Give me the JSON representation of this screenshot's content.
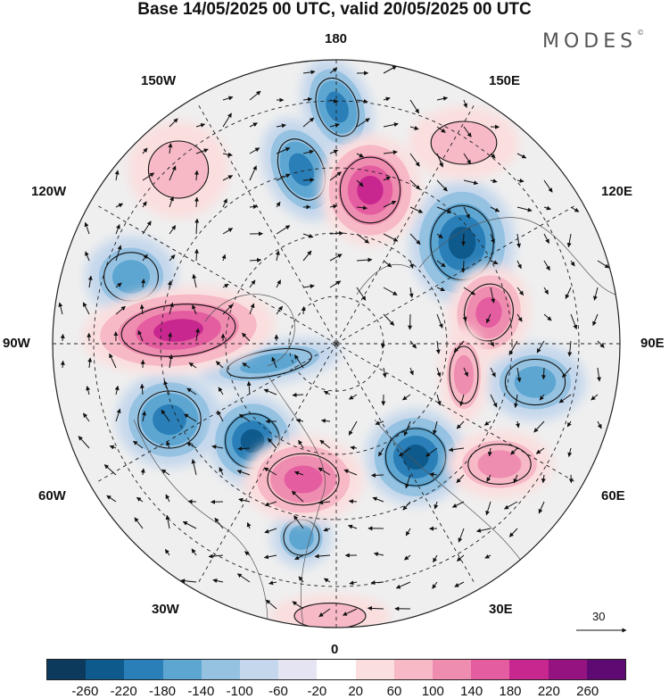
{
  "title": "Base 14/05/2025 00 UTC, valid 20/05/2025 00 UTC",
  "brand": "MODES",
  "brand_mark": "©",
  "lon_labels": {
    "n180": "180",
    "e150": "150E",
    "e120": "120E",
    "e90": "90E",
    "e60": "60E",
    "e30": "30E",
    "s0": "0",
    "w30": "30W",
    "w60": "60W",
    "w90": "90W",
    "w120": "120W",
    "w150": "150W"
  },
  "reference_vector": "30",
  "colorbar": {
    "colors": [
      "#0b3a5c",
      "#0f5a8c",
      "#2a7fb8",
      "#5ea6d2",
      "#96c2e2",
      "#c4d7ec",
      "#e4e4f2",
      "#ffffff",
      "#fbdede",
      "#f6b9c5",
      "#ef8db0",
      "#e45da0",
      "#c8278f",
      "#951380",
      "#5e0a72"
    ],
    "ticks": [
      "-260",
      "-220",
      "-180",
      "-140",
      "-100",
      "-60",
      "-20",
      "20",
      "60",
      "100",
      "140",
      "180",
      "220",
      "260"
    ]
  },
  "anomaly_centers": [
    {
      "sign": "negative",
      "strength": 0.85
    },
    {
      "sign": "negative",
      "strength": 0.75
    },
    {
      "sign": "negative",
      "strength": 0.95
    },
    {
      "sign": "negative",
      "strength": 0.65
    },
    {
      "sign": "negative",
      "strength": 0.7
    },
    {
      "sign": "negative",
      "strength": 1.0
    },
    {
      "sign": "negative",
      "strength": 0.9
    },
    {
      "sign": "negative",
      "strength": 0.6
    },
    {
      "sign": "negative",
      "strength": 0.5
    },
    {
      "sign": "negative",
      "strength": 0.55
    },
    {
      "sign": "positive",
      "strength": 1.0
    },
    {
      "sign": "positive",
      "strength": 1.0
    },
    {
      "sign": "positive",
      "strength": 0.85
    },
    {
      "sign": "positive",
      "strength": 0.75
    },
    {
      "sign": "positive",
      "strength": 0.6
    },
    {
      "sign": "positive",
      "strength": 0.45
    },
    {
      "sign": "positive",
      "strength": 0.4
    },
    {
      "sign": "positive",
      "strength": 0.5
    },
    {
      "sign": "positive",
      "strength": 0.4
    }
  ]
}
